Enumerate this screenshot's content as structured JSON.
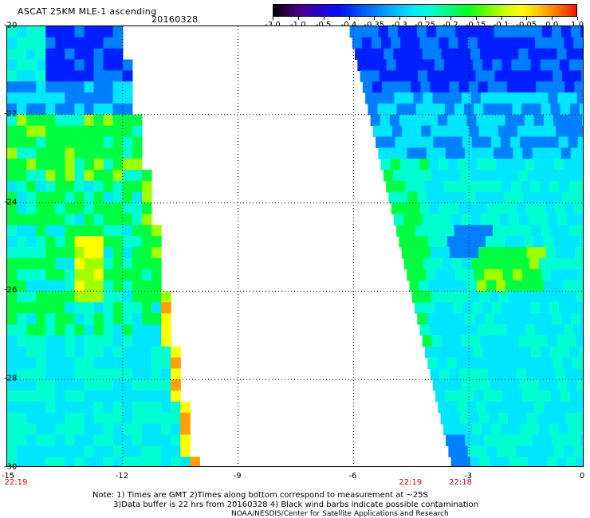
{
  "header": {
    "title": "ASCAT 25KM MLE-1 ascending",
    "date": "20160328"
  },
  "colorbar": {
    "labels": [
      "-3.0",
      "-1.0",
      "-0.5",
      "-0.4",
      "-0.35",
      "-0.3",
      "-0.25",
      "-0.2",
      "-0.15",
      "-0.1",
      "-0.05",
      "0.0",
      "1.0"
    ]
  },
  "map": {
    "x_ticks": [
      "-15",
      "-12",
      "-9",
      "-6",
      "-3",
      "0"
    ],
    "y_ticks": [
      "-20",
      "-22",
      "-24",
      "-26",
      "-28",
      "-30"
    ],
    "xlim": [
      -15,
      0
    ],
    "ylim": [
      -30,
      -20
    ],
    "grid": true,
    "pass_times": [
      {
        "label": "22:19",
        "lon": -15
      },
      {
        "label": "22:19",
        "lon": -4.5
      },
      {
        "label": "22:18",
        "lon": -3.2
      }
    ],
    "colors": {
      "deep_blue": "#0020ff",
      "blue": "#0080ff",
      "cyan": "#00e6ff",
      "teal": "#00ffd0",
      "green": "#00ff40",
      "yellow_green": "#a0ff00",
      "yellow": "#ffff00",
      "orange": "#ffa000"
    }
  },
  "footer": {
    "note_line1": "Note: 1) Times are GMT 2)Times along bottom correspond to measurement at ~25S",
    "note_line2": "3)Data buffer is 22 hrs from 20160328 4) Black wind barbs indicate possible contamination",
    "credit": "NOAA/NESDIS/Center for Satellite Applications and Research"
  }
}
